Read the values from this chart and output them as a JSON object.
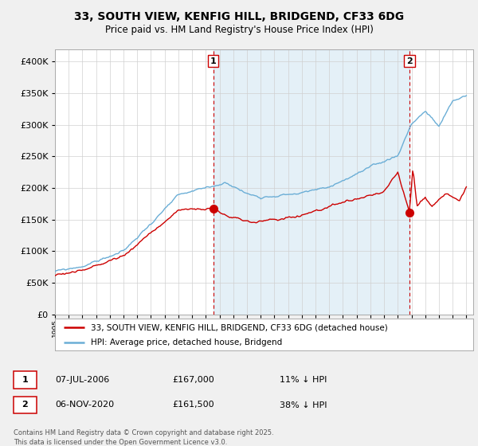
{
  "title_line1": "33, SOUTH VIEW, KENFIG HILL, BRIDGEND, CF33 6DG",
  "title_line2": "Price paid vs. HM Land Registry's House Price Index (HPI)",
  "background_color": "#f0f0f0",
  "plot_bg_color": "#ffffff",
  "hpi_color": "#6baed6",
  "hpi_fill_color": "#ddeeff",
  "price_color": "#cc0000",
  "dashed_color": "#cc0000",
  "ylim": [
    0,
    420000
  ],
  "yticks": [
    0,
    50000,
    100000,
    150000,
    200000,
    250000,
    300000,
    350000,
    400000
  ],
  "year_start": 1995,
  "year_end": 2025,
  "sale1_year": 2006.55,
  "sale1_price": 167000,
  "sale2_year": 2020.85,
  "sale2_price": 161500,
  "legend_label1": "33, SOUTH VIEW, KENFIG HILL, BRIDGEND, CF33 6DG (detached house)",
  "legend_label2": "HPI: Average price, detached house, Bridgend",
  "annotation1_label": "1",
  "annotation1_date": "07-JUL-2006",
  "annotation1_price": "£167,000",
  "annotation1_pct": "11% ↓ HPI",
  "annotation2_label": "2",
  "annotation2_date": "06-NOV-2020",
  "annotation2_price": "£161,500",
  "annotation2_pct": "38% ↓ HPI",
  "footer": "Contains HM Land Registry data © Crown copyright and database right 2025.\nThis data is licensed under the Open Government Licence v3.0."
}
